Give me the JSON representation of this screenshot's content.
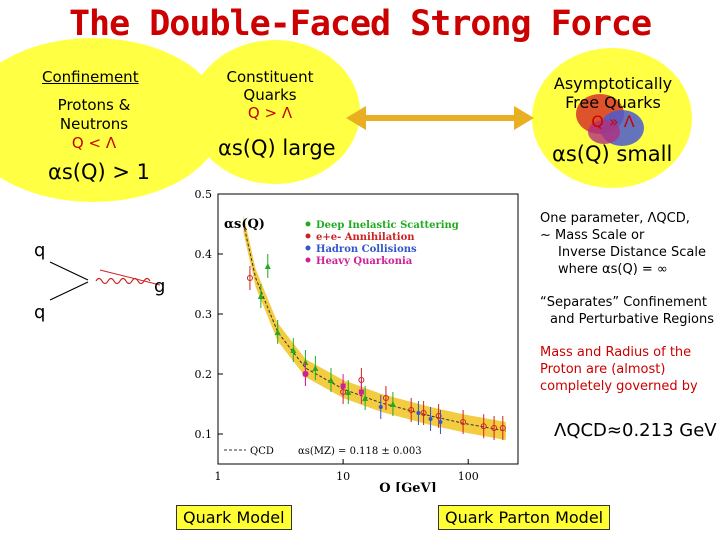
{
  "title": "The Double-Faced Strong Force",
  "confinement": {
    "heading": "Confinement",
    "line1": "Protons &",
    "line2": "Neutrons",
    "condition": "Q < Λ",
    "alpha": "αs(Q) > 1"
  },
  "constituent": {
    "line1": "Constituent",
    "line2": "Quarks",
    "condition": "Q > Λ",
    "alpha": "αs(Q) large"
  },
  "asymptotic": {
    "line1": "Asymptotically",
    "line2": "Free Quarks",
    "condition": "Q » Λ",
    "alpha": "αs(Q) small"
  },
  "feynman": {
    "q_top": "q",
    "q_bottom": "q",
    "g": "g"
  },
  "right_notes": {
    "param_line1": "One parameter, ΛQCD,",
    "param_line2": "~ Mass Scale or",
    "param_line3": "Inverse Distance Scale",
    "param_line4": "where αs(Q) = ∞",
    "separates_line1": "“Separates” Confinement",
    "separates_line2": "and Perturbative Regions",
    "mass_line1": "Mass and Radius of the",
    "mass_line2": "Proton are (almost)",
    "mass_line3": "completely governed by",
    "lambda_value": "ΛQCD≈0.213 GeV"
  },
  "boxes": {
    "left": "Quark Model",
    "right": "Quark Parton Model"
  },
  "colors": {
    "title": "#cc0000",
    "circle": "#ffff44",
    "band": "#f2c320",
    "box": "#ffff33"
  },
  "chart_data": {
    "type": "scatter",
    "title": "",
    "ylabel": "αs(Q)",
    "xlabel": "Q [GeV]",
    "xscale": "log",
    "xlim": [
      1,
      250
    ],
    "ylim": [
      0.05,
      0.5
    ],
    "x_ticks": [
      "1",
      "10",
      "100"
    ],
    "y_ticks": [
      "0.1",
      "0.2",
      "0.3",
      "0.4",
      "0.5"
    ],
    "legend": [
      "Deep Inelastic Scattering",
      "e+e- Annihilation",
      "Hadron Collisions",
      "Heavy Quarkonia"
    ],
    "legend_colors": [
      "#22aa22",
      "#cc2222",
      "#3355cc",
      "#cc2299"
    ],
    "qcd_label": "QCD",
    "fit_label": "αs(MZ) = 0.118 ± 0.003",
    "curve": [
      [
        1.6,
        0.45
      ],
      [
        2,
        0.36
      ],
      [
        3,
        0.27
      ],
      [
        5,
        0.21
      ],
      [
        10,
        0.175
      ],
      [
        20,
        0.152
      ],
      [
        50,
        0.13
      ],
      [
        91,
        0.118
      ],
      [
        200,
        0.105
      ]
    ],
    "series": [
      {
        "name": "Deep Inelastic Scattering",
        "points": [
          [
            2.2,
            0.33
          ],
          [
            2.5,
            0.38
          ],
          [
            3,
            0.27
          ],
          [
            4,
            0.24
          ],
          [
            5,
            0.22
          ],
          [
            6,
            0.21
          ],
          [
            8,
            0.19
          ],
          [
            11,
            0.17
          ],
          [
            15,
            0.16
          ],
          [
            25,
            0.15
          ]
        ]
      },
      {
        "name": "e+e- Annihilation",
        "points": [
          [
            1.8,
            0.36
          ],
          [
            5,
            0.2
          ],
          [
            10,
            0.17
          ],
          [
            14,
            0.19
          ],
          [
            22,
            0.16
          ],
          [
            35,
            0.14
          ],
          [
            44,
            0.135
          ],
          [
            58,
            0.13
          ],
          [
            91,
            0.12
          ],
          [
            133,
            0.113
          ],
          [
            161,
            0.11
          ],
          [
            189,
            0.11
          ]
        ]
      },
      {
        "name": "Hadron Collisions",
        "points": [
          [
            20,
            0.145
          ],
          [
            40,
            0.135
          ],
          [
            50,
            0.125
          ],
          [
            60,
            0.12
          ]
        ]
      },
      {
        "name": "Heavy Quarkonia",
        "points": [
          [
            5,
            0.2
          ],
          [
            10,
            0.18
          ],
          [
            14,
            0.17
          ]
        ]
      }
    ]
  }
}
